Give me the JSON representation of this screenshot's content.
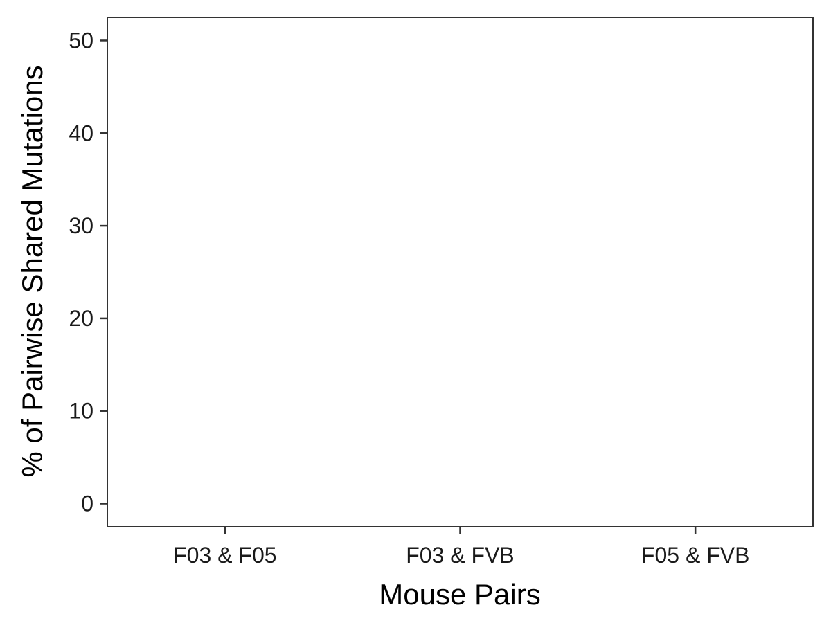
{
  "chart_data": {
    "type": "bar",
    "title": "",
    "xlabel": "Mouse Pairs",
    "ylabel": "% of Pairwise Shared Mutations",
    "categories": [
      "F03 & F05",
      "F03 & FVB",
      "F05 & FVB"
    ],
    "values": [
      0,
      0,
      0
    ],
    "ylim": [
      -2.5,
      52.5
    ],
    "yticks": [
      0,
      10,
      20,
      30,
      40,
      50
    ],
    "ytick_labels": [
      "0",
      "10",
      "20",
      "30",
      "40",
      "50"
    ],
    "grid": false,
    "legend": "none",
    "colors": {
      "bar_outline": "#000000",
      "panel_border": "#333333",
      "text": "#1a1a1a"
    }
  }
}
